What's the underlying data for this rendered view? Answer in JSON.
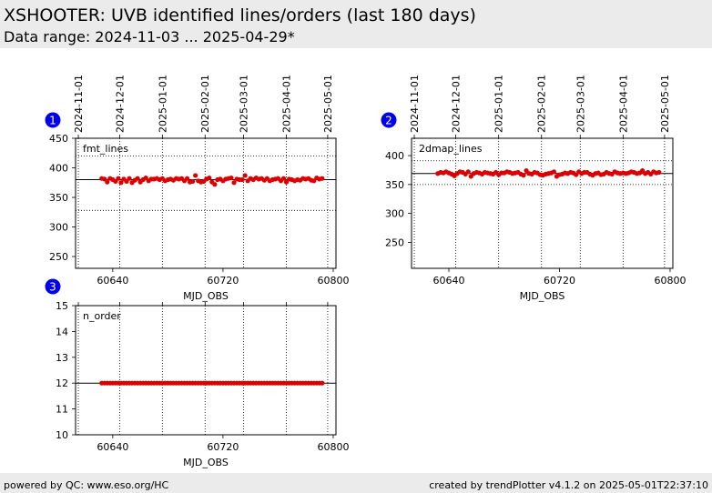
{
  "header": {
    "title": "XSHOOTER: UVB identified lines/orders (last 180 days)",
    "subtitle": "Data range: 2024-11-03 ... 2025-04-29*"
  },
  "footer": {
    "left": "powered by QC: www.eso.org/HC",
    "right": "created by trendPlotter v4.1.2 on 2025-05-01T22:37:10"
  },
  "colors": {
    "points": "#dd0000",
    "badge": "#0000ee",
    "header_bg": "#ebebeb"
  },
  "chart_data": [
    {
      "type": "scatter",
      "badge": "1",
      "label": "fmt_lines",
      "xlabel": "MJD_OBS",
      "xlim": [
        60613,
        60802
      ],
      "ylim": [
        230,
        450
      ],
      "yticks": [
        250,
        300,
        350,
        400,
        450
      ],
      "xticks": [
        60640,
        60720,
        60800
      ],
      "date_ticks": [
        "2024-11-01",
        "2024-12-01",
        "2025-01-01",
        "2025-02-01",
        "2025-03-01",
        "2025-04-01",
        "2025-05-01"
      ],
      "date_tick_mjd": [
        60615,
        60645,
        60676,
        60707,
        60735,
        60766,
        60796
      ],
      "hlines": {
        "mean": 380,
        "upper": 420,
        "lower": 328
      },
      "series": [
        {
          "x": [
            60632,
            60634,
            60636,
            60638,
            60640,
            60642,
            60644,
            60646,
            60648,
            60650,
            60652,
            60654,
            60656,
            60658,
            60660,
            60662,
            60664,
            60666,
            60668,
            60670,
            60672,
            60674,
            60676,
            60678,
            60680,
            60682,
            60684,
            60686,
            60688,
            60690,
            60692,
            60694,
            60696,
            60698,
            60700,
            60702,
            60704,
            60706,
            60708,
            60710,
            60712,
            60714,
            60716,
            60718,
            60720,
            60722,
            60724,
            60726,
            60728,
            60730,
            60732,
            60734,
            60736,
            60738,
            60740,
            60742,
            60744,
            60746,
            60748,
            60750,
            60752,
            60754,
            60756,
            60758,
            60760,
            60762,
            60764,
            60766,
            60768,
            60770,
            60772,
            60774,
            60776,
            60778,
            60780,
            60782,
            60784,
            60786,
            60788,
            60790,
            60792
          ],
          "y": [
            382,
            381,
            376,
            382,
            380,
            377,
            382,
            375,
            381,
            377,
            382,
            375,
            379,
            382,
            376,
            380,
            383,
            378,
            381,
            381,
            382,
            380,
            382,
            378,
            380,
            381,
            379,
            382,
            381,
            382,
            378,
            382,
            376,
            377,
            387,
            378,
            376,
            377,
            381,
            383,
            376,
            372,
            380,
            381,
            378,
            381,
            382,
            383,
            375,
            381,
            380,
            380,
            387,
            378,
            382,
            380,
            383,
            381,
            382,
            379,
            382,
            378,
            380,
            381,
            382,
            378,
            382,
            376,
            381,
            380,
            378,
            380,
            379,
            382,
            381,
            382,
            379,
            378,
            383,
            381,
            382
          ]
        }
      ]
    },
    {
      "type": "scatter",
      "badge": "2",
      "label": "2dmap_lines",
      "xlabel": "MJD_OBS",
      "xlim": [
        60613,
        60802
      ],
      "ylim": [
        205,
        430
      ],
      "yticks": [
        250,
        300,
        350,
        400
      ],
      "xticks": [
        60640,
        60720,
        60800
      ],
      "date_ticks": [
        "2024-11-01",
        "2024-12-01",
        "2025-01-01",
        "2025-02-01",
        "2025-03-01",
        "2025-04-01",
        "2025-05-01"
      ],
      "date_tick_mjd": [
        60615,
        60645,
        60676,
        60707,
        60735,
        60766,
        60796
      ],
      "hlines": {
        "mean": 369,
        "upper": 391,
        "lower": 350
      },
      "series": [
        {
          "x": [
            60632,
            60634,
            60636,
            60638,
            60640,
            60642,
            60644,
            60646,
            60648,
            60650,
            60652,
            60654,
            60656,
            60658,
            60660,
            60662,
            60664,
            60666,
            60668,
            60670,
            60672,
            60674,
            60676,
            60678,
            60680,
            60682,
            60684,
            60686,
            60688,
            60690,
            60692,
            60694,
            60696,
            60698,
            60700,
            60702,
            60704,
            60706,
            60708,
            60710,
            60712,
            60714,
            60716,
            60718,
            60720,
            60722,
            60724,
            60726,
            60728,
            60730,
            60732,
            60734,
            60736,
            60738,
            60740,
            60742,
            60744,
            60746,
            60748,
            60750,
            60752,
            60754,
            60756,
            60758,
            60760,
            60762,
            60764,
            60766,
            60768,
            60770,
            60772,
            60774,
            60776,
            60778,
            60780,
            60782,
            60784,
            60786,
            60788,
            60790,
            60792
          ],
          "y": [
            369,
            371,
            370,
            372,
            370,
            368,
            365,
            369,
            372,
            371,
            368,
            372,
            364,
            369,
            371,
            370,
            368,
            371,
            370,
            369,
            368,
            371,
            367,
            370,
            370,
            372,
            371,
            369,
            370,
            371,
            368,
            366,
            374,
            369,
            368,
            371,
            370,
            367,
            366,
            368,
            369,
            370,
            372,
            364,
            367,
            368,
            370,
            369,
            371,
            370,
            367,
            372,
            369,
            371,
            371,
            368,
            366,
            369,
            370,
            367,
            368,
            371,
            369,
            368,
            372,
            370,
            369,
            370,
            369,
            370,
            372,
            371,
            369,
            370,
            374,
            369,
            371,
            368,
            372,
            370,
            371
          ]
        }
      ]
    },
    {
      "type": "scatter",
      "badge": "3",
      "label": "n_order",
      "xlabel": "MJD_OBS",
      "xlim": [
        60613,
        60802
      ],
      "ylim": [
        10,
        15
      ],
      "yticks": [
        10,
        11,
        12,
        13,
        14,
        15
      ],
      "xticks": [
        60640,
        60720,
        60800
      ],
      "date_tick_mjd": [
        60615,
        60645,
        60676,
        60707,
        60735,
        60766,
        60796
      ],
      "hlines": {
        "mean": 12
      },
      "series": [
        {
          "x": [
            60632,
            60634,
            60636,
            60638,
            60640,
            60642,
            60644,
            60646,
            60648,
            60650,
            60652,
            60654,
            60656,
            60658,
            60660,
            60662,
            60664,
            60666,
            60668,
            60670,
            60672,
            60674,
            60676,
            60678,
            60680,
            60682,
            60684,
            60686,
            60688,
            60690,
            60692,
            60694,
            60696,
            60698,
            60700,
            60702,
            60704,
            60706,
            60708,
            60710,
            60712,
            60714,
            60716,
            60718,
            60720,
            60722,
            60724,
            60726,
            60728,
            60730,
            60732,
            60734,
            60736,
            60738,
            60740,
            60742,
            60744,
            60746,
            60748,
            60750,
            60752,
            60754,
            60756,
            60758,
            60760,
            60762,
            60764,
            60766,
            60768,
            60770,
            60772,
            60774,
            60776,
            60778,
            60780,
            60782,
            60784,
            60786,
            60788,
            60790,
            60792
          ],
          "y": [
            12,
            12,
            12,
            12,
            12,
            12,
            12,
            12,
            12,
            12,
            12,
            12,
            12,
            12,
            12,
            12,
            12,
            12,
            12,
            12,
            12,
            12,
            12,
            12,
            12,
            12,
            12,
            12,
            12,
            12,
            12,
            12,
            12,
            12,
            12,
            12,
            12,
            12,
            12,
            12,
            12,
            12,
            12,
            12,
            12,
            12,
            12,
            12,
            12,
            12,
            12,
            12,
            12,
            12,
            12,
            12,
            12,
            12,
            12,
            12,
            12,
            12,
            12,
            12,
            12,
            12,
            12,
            12,
            12,
            12,
            12,
            12,
            12,
            12,
            12,
            12,
            12,
            12,
            12,
            12,
            12
          ]
        }
      ]
    }
  ]
}
